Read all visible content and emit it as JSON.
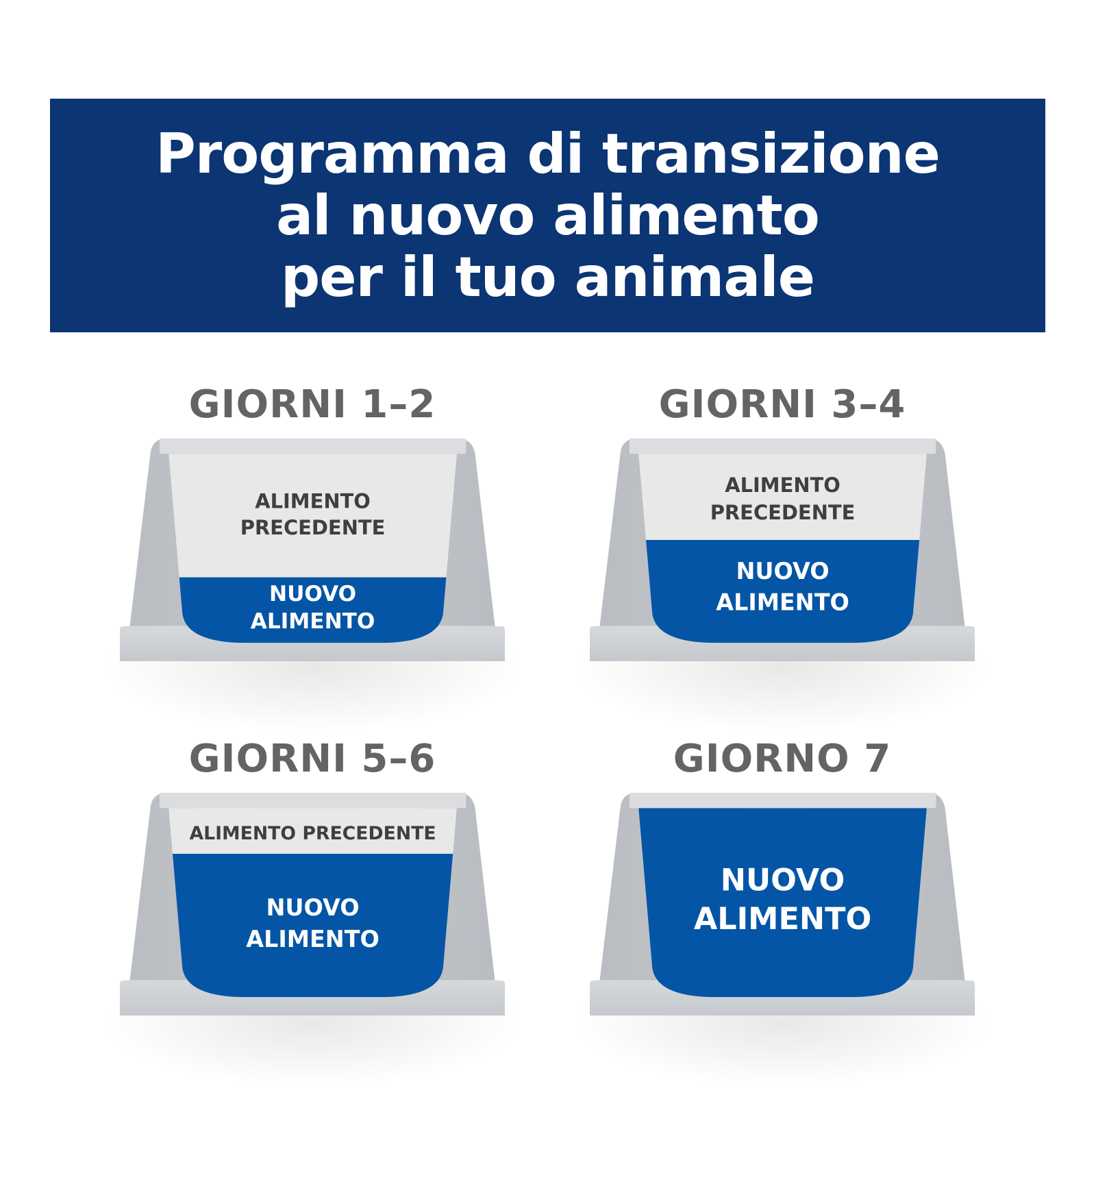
{
  "title": {
    "lines": [
      "Programma di transizione",
      "al nuovo alimento",
      "per il tuo animale"
    ]
  },
  "colors": {
    "banner": "#0b3573",
    "new_food": "#0455a6",
    "old_food": "#e8e8e8",
    "bowl": "#c4c8cc",
    "heading": "#646464"
  },
  "stages": [
    {
      "heading": "GIORNI 1–2",
      "old_label": [
        "ALIMENTO",
        "PRECEDENTE"
      ],
      "new_label": [
        "NUOVO",
        "ALIMENTO"
      ],
      "new_food_percent": 25
    },
    {
      "heading": "GIORNI 3–4",
      "old_label": [
        "ALIMENTO",
        "PRECEDENTE"
      ],
      "new_label": [
        "NUOVO",
        "ALIMENTO"
      ],
      "new_food_percent": 50
    },
    {
      "heading": "GIORNI 5–6",
      "old_label": [
        "ALIMENTO PRECEDENTE"
      ],
      "new_label": [
        "NUOVO",
        "ALIMENTO"
      ],
      "new_food_percent": 75
    },
    {
      "heading": "GIORNO 7",
      "old_label": [],
      "new_label": [
        "NUOVO",
        "ALIMENTO"
      ],
      "new_food_percent": 100
    }
  ]
}
